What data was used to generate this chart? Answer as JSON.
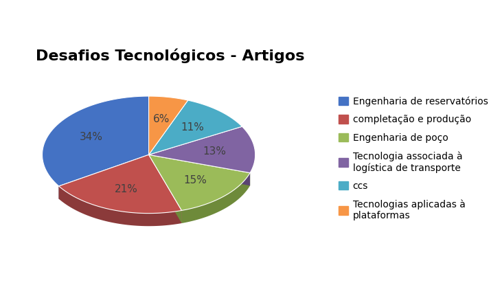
{
  "title": "Desafios Tecnológicos - Artigos",
  "slices": [
    34,
    21,
    15,
    13,
    11,
    6
  ],
  "labels": [
    "34%",
    "21%",
    "15%",
    "13%",
    "11%",
    "6%"
  ],
  "colors": [
    "#4472C4",
    "#C0504D",
    "#9BBB59",
    "#8064A2",
    "#4BACC6",
    "#F79646"
  ],
  "edge_colors": [
    "#2E4F8A",
    "#8B3A3A",
    "#6E8A3A",
    "#5A4472",
    "#2E7A8A",
    "#B36020"
  ],
  "legend_labels": [
    "Engenharia de reservatórios",
    "completação e produção",
    "Engenharia de poço",
    "Tecnologia associada à\nlogística de transporte",
    "ccs",
    "Tecnologias aplicadas à\nplataformas"
  ],
  "title_fontsize": 16,
  "legend_fontsize": 10,
  "label_fontsize": 11,
  "label_color": "#404040",
  "startangle": 90,
  "depth": 0.12,
  "yscale": 0.55
}
